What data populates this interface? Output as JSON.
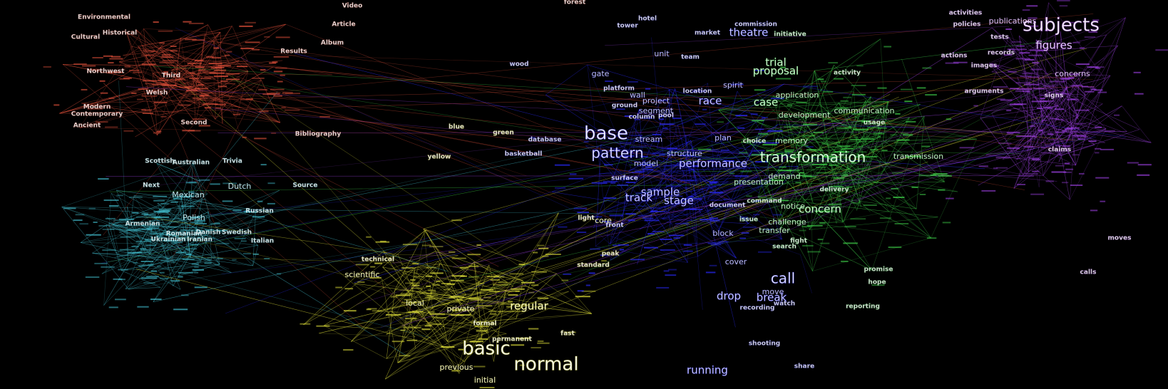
{
  "graph": {
    "background": "#000000",
    "clusters": [
      {
        "name": "red",
        "color": "#e0503a"
      },
      {
        "name": "cyan",
        "color": "#3fb8c8"
      },
      {
        "name": "yellow",
        "color": "#e3e33a"
      },
      {
        "name": "blue",
        "color": "#2a2aff"
      },
      {
        "name": "green",
        "color": "#3fd24a"
      },
      {
        "name": "purple",
        "color": "#9b3fe0"
      }
    ],
    "labels": [
      {
        "text": "subjects",
        "cluster": "purple",
        "weight": 5
      },
      {
        "text": "figures",
        "cluster": "purple",
        "weight": 3
      },
      {
        "text": "publications",
        "cluster": "purple",
        "weight": 2
      },
      {
        "text": "policies",
        "cluster": "purple",
        "weight": 1
      },
      {
        "text": "activities",
        "cluster": "purple",
        "weight": 1
      },
      {
        "text": "concerns",
        "cluster": "purple",
        "weight": 2
      },
      {
        "text": "arguments",
        "cluster": "purple",
        "weight": 1
      },
      {
        "text": "records",
        "cluster": "purple",
        "weight": 1
      },
      {
        "text": "images",
        "cluster": "purple",
        "weight": 1
      },
      {
        "text": "claims",
        "cluster": "purple",
        "weight": 1
      },
      {
        "text": "signs",
        "cluster": "purple",
        "weight": 1
      },
      {
        "text": "moves",
        "cluster": "purple",
        "weight": 1
      },
      {
        "text": "calls",
        "cluster": "purple",
        "weight": 1
      },
      {
        "text": "tests",
        "cluster": "purple",
        "weight": 1
      },
      {
        "text": "actions",
        "cluster": "purple",
        "weight": 1
      },
      {
        "text": "theatre",
        "cluster": "blue",
        "weight": 3
      },
      {
        "text": "commission",
        "cluster": "blue",
        "weight": 1
      },
      {
        "text": "market",
        "cluster": "blue",
        "weight": 1
      },
      {
        "text": "tower",
        "cluster": "blue",
        "weight": 1
      },
      {
        "text": "hotel",
        "cluster": "blue",
        "weight": 1
      },
      {
        "text": "unit",
        "cluster": "blue",
        "weight": 2
      },
      {
        "text": "team",
        "cluster": "blue",
        "weight": 1
      },
      {
        "text": "gate",
        "cluster": "blue",
        "weight": 2
      },
      {
        "text": "wood",
        "cluster": "blue",
        "weight": 1
      },
      {
        "text": "platform",
        "cluster": "blue",
        "weight": 1
      },
      {
        "text": "wall",
        "cluster": "blue",
        "weight": 2
      },
      {
        "text": "project",
        "cluster": "blue",
        "weight": 2
      },
      {
        "text": "race",
        "cluster": "blue",
        "weight": 3
      },
      {
        "text": "ground",
        "cluster": "blue",
        "weight": 1
      },
      {
        "text": "segment",
        "cluster": "blue",
        "weight": 2
      },
      {
        "text": "spirit",
        "cluster": "blue",
        "weight": 2
      },
      {
        "text": "location",
        "cluster": "blue",
        "weight": 1
      },
      {
        "text": "base",
        "cluster": "blue",
        "weight": 5
      },
      {
        "text": "stream",
        "cluster": "blue",
        "weight": 2
      },
      {
        "text": "plan",
        "cluster": "blue",
        "weight": 2
      },
      {
        "text": "pattern",
        "cluster": "blue",
        "weight": 4
      },
      {
        "text": "structure",
        "cluster": "blue",
        "weight": 2
      },
      {
        "text": "performance",
        "cluster": "blue",
        "weight": 3
      },
      {
        "text": "model",
        "cluster": "blue",
        "weight": 2
      },
      {
        "text": "sample",
        "cluster": "blue",
        "weight": 3
      },
      {
        "text": "track",
        "cluster": "blue",
        "weight": 3
      },
      {
        "text": "stage",
        "cluster": "blue",
        "weight": 3
      },
      {
        "text": "document",
        "cluster": "blue",
        "weight": 1
      },
      {
        "text": "block",
        "cluster": "blue",
        "weight": 2
      },
      {
        "text": "cover",
        "cluster": "blue",
        "weight": 2
      },
      {
        "text": "call",
        "cluster": "blue",
        "weight": 4
      },
      {
        "text": "drop",
        "cluster": "blue",
        "weight": 3
      },
      {
        "text": "break",
        "cluster": "blue",
        "weight": 3
      },
      {
        "text": "move",
        "cluster": "blue",
        "weight": 2
      },
      {
        "text": "watch",
        "cluster": "blue",
        "weight": 1
      },
      {
        "text": "running",
        "cluster": "blue",
        "weight": 3
      },
      {
        "text": "share",
        "cluster": "blue",
        "weight": 1
      },
      {
        "text": "database",
        "cluster": "blue",
        "weight": 1
      },
      {
        "text": "basketball",
        "cluster": "blue",
        "weight": 1
      },
      {
        "text": "column",
        "cluster": "blue",
        "weight": 1
      },
      {
        "text": "pool",
        "cluster": "blue",
        "weight": 1
      },
      {
        "text": "surface",
        "cluster": "blue",
        "weight": 1
      },
      {
        "text": "recording",
        "cluster": "blue",
        "weight": 1
      },
      {
        "text": "front",
        "cluster": "blue",
        "weight": 1
      },
      {
        "text": "shooting",
        "cluster": "blue",
        "weight": 1
      },
      {
        "text": "trial",
        "cluster": "green",
        "weight": 3
      },
      {
        "text": "proposal",
        "cluster": "green",
        "weight": 3
      },
      {
        "text": "initiative",
        "cluster": "green",
        "weight": 1
      },
      {
        "text": "activity",
        "cluster": "green",
        "weight": 1
      },
      {
        "text": "case",
        "cluster": "green",
        "weight": 3
      },
      {
        "text": "application",
        "cluster": "green",
        "weight": 2
      },
      {
        "text": "development",
        "cluster": "green",
        "weight": 2
      },
      {
        "text": "communication",
        "cluster": "green",
        "weight": 2
      },
      {
        "text": "memory",
        "cluster": "green",
        "weight": 2
      },
      {
        "text": "transformation",
        "cluster": "green",
        "weight": 4
      },
      {
        "text": "transmission",
        "cluster": "green",
        "weight": 2
      },
      {
        "text": "presentation",
        "cluster": "green",
        "weight": 2
      },
      {
        "text": "demand",
        "cluster": "green",
        "weight": 2
      },
      {
        "text": "notice",
        "cluster": "green",
        "weight": 2
      },
      {
        "text": "concern",
        "cluster": "green",
        "weight": 3
      },
      {
        "text": "challenge",
        "cluster": "green",
        "weight": 2
      },
      {
        "text": "transfer",
        "cluster": "green",
        "weight": 2
      },
      {
        "text": "issue",
        "cluster": "green",
        "weight": 1
      },
      {
        "text": "fight",
        "cluster": "green",
        "weight": 1
      },
      {
        "text": "search",
        "cluster": "green",
        "weight": 1
      },
      {
        "text": "promise",
        "cluster": "green",
        "weight": 1
      },
      {
        "text": "hope",
        "cluster": "green",
        "weight": 1
      },
      {
        "text": "reporting",
        "cluster": "green",
        "weight": 1
      },
      {
        "text": "choice",
        "cluster": "green",
        "weight": 1
      },
      {
        "text": "command",
        "cluster": "green",
        "weight": 1
      },
      {
        "text": "delivery",
        "cluster": "green",
        "weight": 1
      },
      {
        "text": "usage",
        "cluster": "green",
        "weight": 1
      },
      {
        "text": "basic",
        "cluster": "yellow",
        "weight": 5
      },
      {
        "text": "normal",
        "cluster": "yellow",
        "weight": 5
      },
      {
        "text": "regular",
        "cluster": "yellow",
        "weight": 3
      },
      {
        "text": "previous",
        "cluster": "yellow",
        "weight": 2
      },
      {
        "text": "initial",
        "cluster": "yellow",
        "weight": 2
      },
      {
        "text": "scientific",
        "cluster": "yellow",
        "weight": 2
      },
      {
        "text": "local",
        "cluster": "yellow",
        "weight": 2
      },
      {
        "text": "private",
        "cluster": "yellow",
        "weight": 2
      },
      {
        "text": "formal",
        "cluster": "yellow",
        "weight": 1
      },
      {
        "text": "standard",
        "cluster": "yellow",
        "weight": 1
      },
      {
        "text": "peak",
        "cluster": "yellow",
        "weight": 1
      },
      {
        "text": "core",
        "cluster": "yellow",
        "weight": 2
      },
      {
        "text": "light",
        "cluster": "yellow",
        "weight": 1
      },
      {
        "text": "fast",
        "cluster": "yellow",
        "weight": 1
      },
      {
        "text": "permanent",
        "cluster": "yellow",
        "weight": 1
      },
      {
        "text": "green",
        "cluster": "yellow",
        "weight": 1
      },
      {
        "text": "blue",
        "cluster": "yellow",
        "weight": 1
      },
      {
        "text": "yellow",
        "cluster": "yellow",
        "weight": 1
      },
      {
        "text": "technical",
        "cluster": "yellow",
        "weight": 1
      },
      {
        "text": "Polish",
        "cluster": "cyan",
        "weight": 2
      },
      {
        "text": "Mexican",
        "cluster": "cyan",
        "weight": 2
      },
      {
        "text": "Dutch",
        "cluster": "cyan",
        "weight": 2
      },
      {
        "text": "Russian",
        "cluster": "cyan",
        "weight": 1
      },
      {
        "text": "Italian",
        "cluster": "cyan",
        "weight": 1
      },
      {
        "text": "Romanian",
        "cluster": "cyan",
        "weight": 1
      },
      {
        "text": "Danish",
        "cluster": "cyan",
        "weight": 1
      },
      {
        "text": "Swedish",
        "cluster": "cyan",
        "weight": 1
      },
      {
        "text": "Ukrainian",
        "cluster": "cyan",
        "weight": 1
      },
      {
        "text": "Armenian",
        "cluster": "cyan",
        "weight": 1
      },
      {
        "text": "Scottish",
        "cluster": "cyan",
        "weight": 1
      },
      {
        "text": "Australian",
        "cluster": "cyan",
        "weight": 1
      },
      {
        "text": "Next",
        "cluster": "cyan",
        "weight": 1
      },
      {
        "text": "Trivia",
        "cluster": "cyan",
        "weight": 1
      },
      {
        "text": "Source",
        "cluster": "cyan",
        "weight": 1
      },
      {
        "text": "Iranian",
        "cluster": "cyan",
        "weight": 1
      },
      {
        "text": "Bibliography",
        "cluster": "red",
        "weight": 1
      },
      {
        "text": "Welsh",
        "cluster": "red",
        "weight": 1
      },
      {
        "text": "Ancient",
        "cluster": "red",
        "weight": 1
      },
      {
        "text": "Environmental",
        "cluster": "red",
        "weight": 1
      },
      {
        "text": "Historical",
        "cluster": "red",
        "weight": 1
      },
      {
        "text": "Cultural",
        "cluster": "red",
        "weight": 1
      },
      {
        "text": "Article",
        "cluster": "red",
        "weight": 1
      },
      {
        "text": "Third",
        "cluster": "red",
        "weight": 1
      },
      {
        "text": "Northwest",
        "cluster": "red",
        "weight": 1
      },
      {
        "text": "Modern",
        "cluster": "red",
        "weight": 1
      },
      {
        "text": "Contemporary",
        "cluster": "red",
        "weight": 1
      },
      {
        "text": "Second",
        "cluster": "red",
        "weight": 1
      },
      {
        "text": "Video",
        "cluster": "red",
        "weight": 1
      },
      {
        "text": "Album",
        "cluster": "red",
        "weight": 1
      },
      {
        "text": "Results",
        "cluster": "red",
        "weight": 1
      },
      {
        "text": "forest",
        "cluster": "red",
        "weight": 1
      }
    ]
  }
}
